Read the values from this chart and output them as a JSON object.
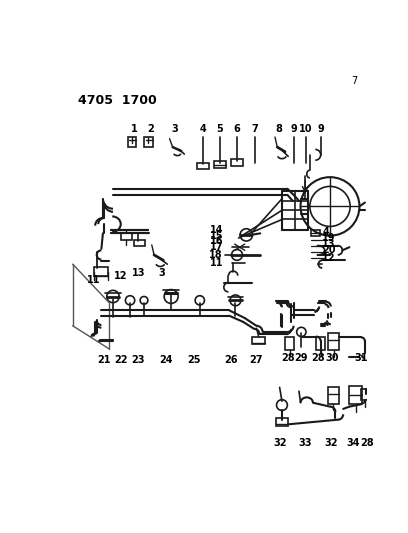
{
  "title": "4705  1700",
  "page_number": "7",
  "background_color": "#ffffff",
  "line_color": "#1a1a1a",
  "text_color": "#000000",
  "fig_width": 4.08,
  "fig_height": 5.33,
  "dpi": 100
}
